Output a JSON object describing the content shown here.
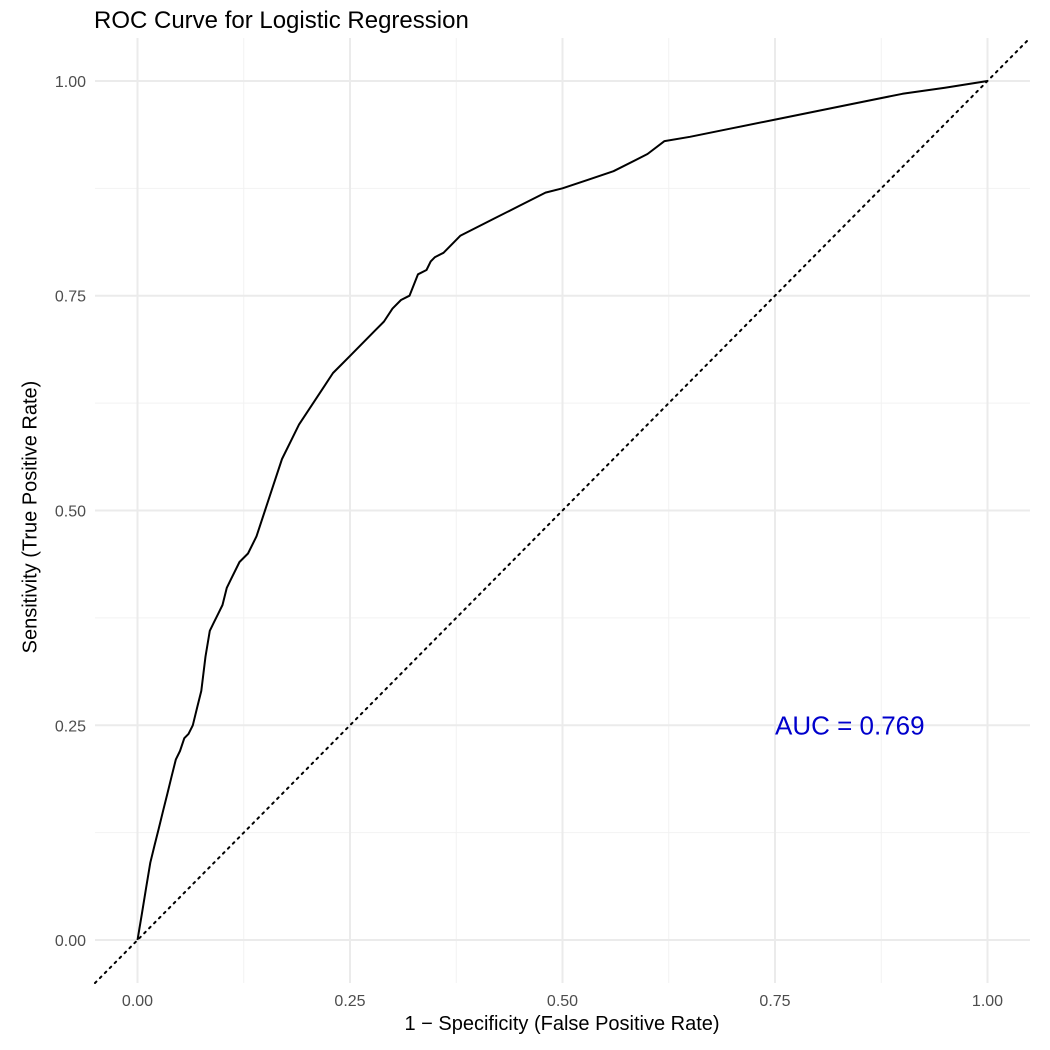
{
  "chart_data": {
    "type": "line",
    "title": "ROC Curve for Logistic Regression",
    "xlabel": "1 − Specificity (False Positive Rate)",
    "ylabel": "Sensitivity (True Positive Rate)",
    "xlim": [
      -0.05,
      1.05
    ],
    "ylim": [
      -0.05,
      1.05
    ],
    "x_ticks": [
      0,
      0.25,
      0.5,
      0.75,
      1
    ],
    "y_ticks": [
      0,
      0.25,
      0.5,
      0.75,
      1
    ],
    "x_tick_labels": [
      "0.00",
      "0.25",
      "0.50",
      "0.75",
      "1.00"
    ],
    "y_tick_labels": [
      "0.00",
      "0.25",
      "0.50",
      "0.75",
      "1.00"
    ],
    "grid": true,
    "legend": "none",
    "series": [
      {
        "style": "solid",
        "color": "#000000",
        "x": [
          0,
          0.005,
          0.01,
          0.015,
          0.02,
          0.025,
          0.03,
          0.035,
          0.04,
          0.045,
          0.05,
          0.055,
          0.06,
          0.065,
          0.07,
          0.075,
          0.08,
          0.085,
          0.09,
          0.095,
          0.1,
          0.105,
          0.11,
          0.12,
          0.13,
          0.14,
          0.15,
          0.16,
          0.17,
          0.18,
          0.19,
          0.2,
          0.21,
          0.22,
          0.23,
          0.24,
          0.25,
          0.26,
          0.27,
          0.28,
          0.29,
          0.3,
          0.31,
          0.32,
          0.33,
          0.34,
          0.345,
          0.35,
          0.36,
          0.38,
          0.4,
          0.42,
          0.45,
          0.48,
          0.5,
          0.53,
          0.56,
          0.6,
          0.62,
          0.65,
          0.7,
          0.75,
          0.8,
          0.85,
          0.9,
          0.95,
          1
        ],
        "y": [
          0,
          0.03,
          0.06,
          0.09,
          0.11,
          0.13,
          0.15,
          0.17,
          0.19,
          0.21,
          0.22,
          0.235,
          0.24,
          0.25,
          0.27,
          0.29,
          0.33,
          0.36,
          0.37,
          0.38,
          0.39,
          0.41,
          0.42,
          0.44,
          0.45,
          0.47,
          0.5,
          0.53,
          0.56,
          0.58,
          0.6,
          0.615,
          0.63,
          0.645,
          0.66,
          0.67,
          0.68,
          0.69,
          0.7,
          0.71,
          0.72,
          0.735,
          0.745,
          0.75,
          0.775,
          0.78,
          0.79,
          0.795,
          0.8,
          0.82,
          0.83,
          0.84,
          0.855,
          0.87,
          0.875,
          0.885,
          0.895,
          0.915,
          0.93,
          0.935,
          0.945,
          0.955,
          0.965,
          0.975,
          0.985,
          0.992,
          1
        ]
      },
      {
        "style": "dotted",
        "color": "#000000",
        "x": [
          -0.05,
          1.05
        ],
        "y": [
          -0.05,
          1.05
        ]
      }
    ],
    "annotations": [
      {
        "text": "AUC = 0.769",
        "x": 0.75,
        "y": 0.25,
        "color": "#0000CC"
      }
    ]
  }
}
